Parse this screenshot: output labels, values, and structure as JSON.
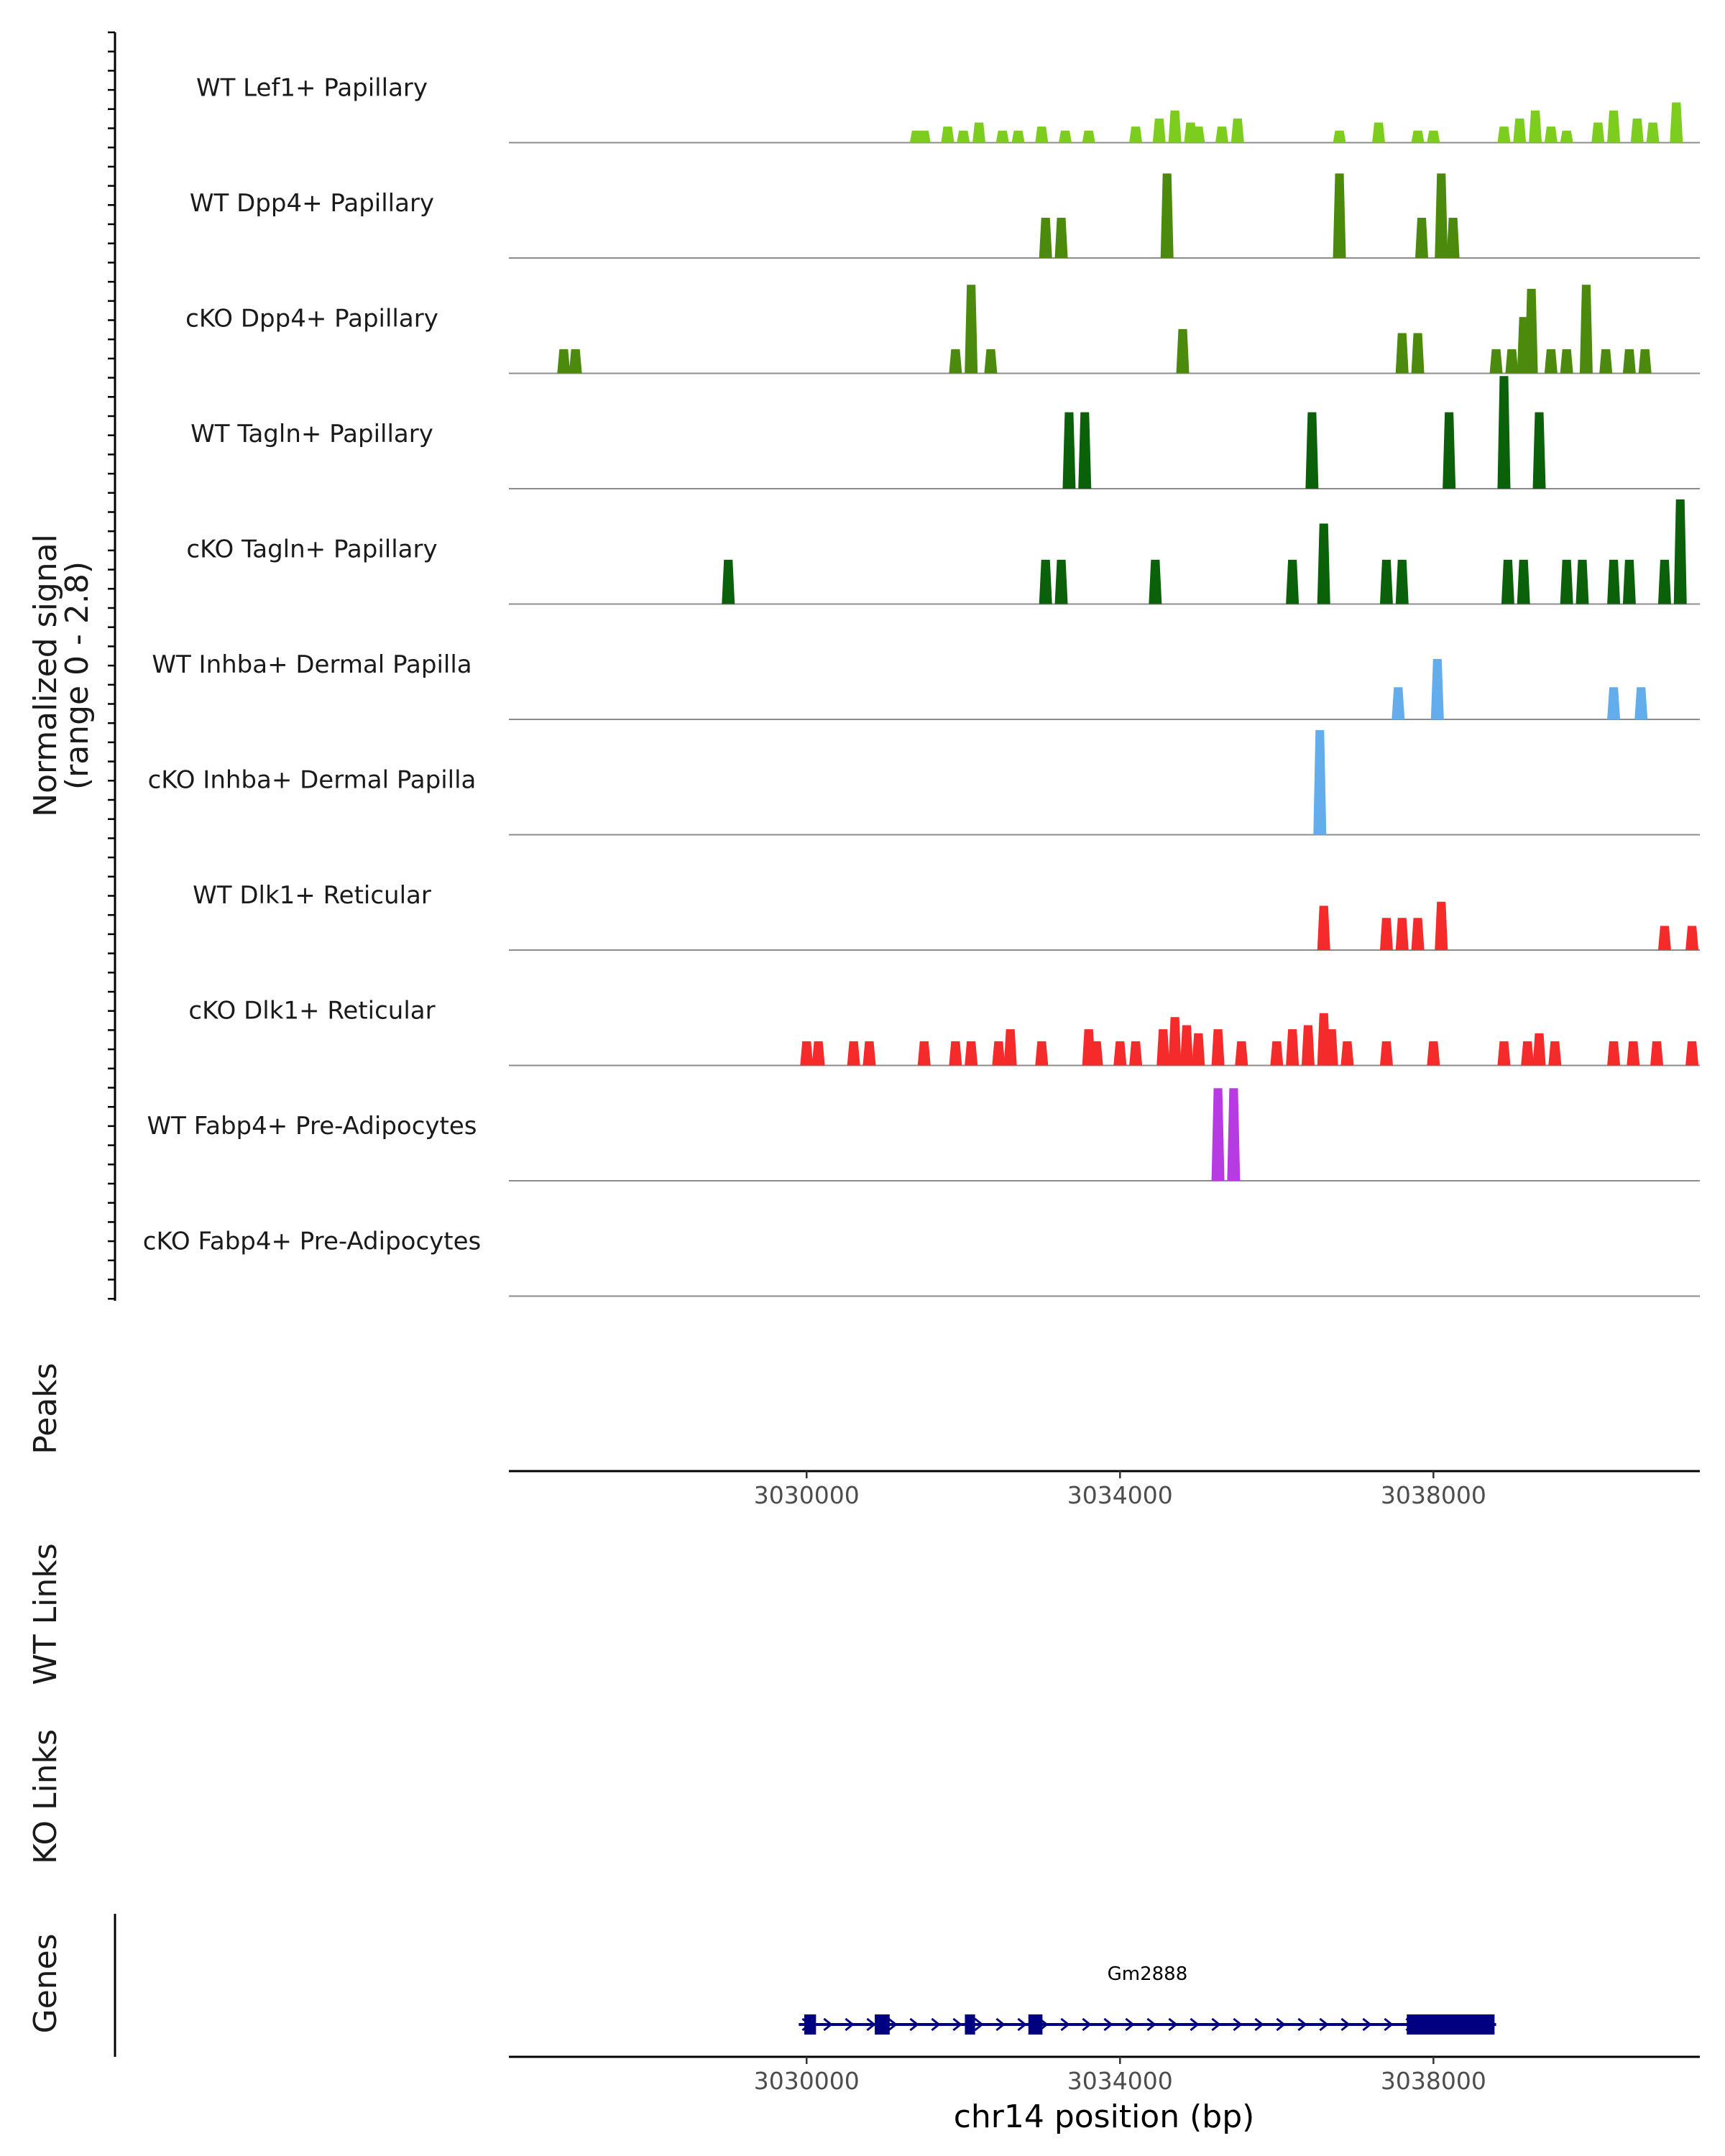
{
  "chart_data": {
    "type": "area",
    "title": "",
    "chromosome": "chr14",
    "xlabel": "chr14 position (bp)",
    "ylabel_line1": "Normalized signal",
    "ylabel_line2": "(range 0 - 2.8)",
    "xlim": [
      3026200,
      3041400
    ],
    "ylim": [
      0,
      2.8
    ],
    "x_ticks": [
      3030000,
      3034000,
      3038000
    ],
    "x_tick_labels": [
      "3030000",
      "3034000",
      "3038000"
    ],
    "panel_labels": {
      "peaks": "Peaks",
      "wt_links": "WT Links",
      "ko_links": "KO Links",
      "genes": "Genes"
    },
    "series": [
      {
        "name": "WT Lef1+ Papillary",
        "color": "#7CCD1E",
        "peaks": [
          [
            3031400,
            0.3
          ],
          [
            3031500,
            0.3
          ],
          [
            3031800,
            0.4
          ],
          [
            3032000,
            0.3
          ],
          [
            3032200,
            0.5
          ],
          [
            3032500,
            0.3
          ],
          [
            3032700,
            0.3
          ],
          [
            3033000,
            0.4
          ],
          [
            3033300,
            0.3
          ],
          [
            3033600,
            0.3
          ],
          [
            3034200,
            0.4
          ],
          [
            3034500,
            0.6
          ],
          [
            3034700,
            0.8
          ],
          [
            3034900,
            0.5
          ],
          [
            3035000,
            0.4
          ],
          [
            3035300,
            0.4
          ],
          [
            3035500,
            0.6
          ],
          [
            3036800,
            0.3
          ],
          [
            3037300,
            0.5
          ],
          [
            3037800,
            0.3
          ],
          [
            3038000,
            0.3
          ],
          [
            3038900,
            0.4
          ],
          [
            3039100,
            0.6
          ],
          [
            3039300,
            0.8
          ],
          [
            3039500,
            0.4
          ],
          [
            3039700,
            0.3
          ],
          [
            3040100,
            0.5
          ],
          [
            3040300,
            0.8
          ],
          [
            3040600,
            0.6
          ],
          [
            3040800,
            0.5
          ],
          [
            3041100,
            1.0
          ]
        ]
      },
      {
        "name": "WT Dpp4+ Papillary",
        "color": "#4C8A0E",
        "peaks": [
          [
            3033050,
            1.0
          ],
          [
            3033250,
            1.0
          ],
          [
            3034600,
            2.1
          ],
          [
            3036800,
            2.1
          ],
          [
            3037850,
            1.0
          ],
          [
            3038100,
            2.1
          ],
          [
            3038250,
            1.0
          ]
        ]
      },
      {
        "name": "cKO Dpp4+ Papillary",
        "color": "#4C8A0E",
        "peaks": [
          [
            3026900,
            0.6
          ],
          [
            3027050,
            0.6
          ],
          [
            3031900,
            0.6
          ],
          [
            3032100,
            2.2
          ],
          [
            3032350,
            0.6
          ],
          [
            3034800,
            1.1
          ],
          [
            3037600,
            1.0
          ],
          [
            3037800,
            1.0
          ],
          [
            3038800,
            0.6
          ],
          [
            3039000,
            0.6
          ],
          [
            3039150,
            1.4
          ],
          [
            3039250,
            2.1
          ],
          [
            3039500,
            0.6
          ],
          [
            3039700,
            0.6
          ],
          [
            3039950,
            2.2
          ],
          [
            3040200,
            0.6
          ],
          [
            3040500,
            0.6
          ],
          [
            3040700,
            0.6
          ]
        ]
      },
      {
        "name": "WT Tagln+ Papillary",
        "color": "#0B6109",
        "peaks": [
          [
            3033350,
            1.9
          ],
          [
            3033550,
            1.9
          ],
          [
            3036450,
            1.9
          ],
          [
            3038200,
            1.9
          ],
          [
            3038900,
            2.8
          ],
          [
            3039350,
            1.9
          ]
        ]
      },
      {
        "name": "cKO Tagln+ Papillary",
        "color": "#0B6109",
        "peaks": [
          [
            3029000,
            1.1
          ],
          [
            3033050,
            1.1
          ],
          [
            3033250,
            1.1
          ],
          [
            3034450,
            1.1
          ],
          [
            3036200,
            1.1
          ],
          [
            3036600,
            2.0
          ],
          [
            3037400,
            1.1
          ],
          [
            3037600,
            1.1
          ],
          [
            3038950,
            1.1
          ],
          [
            3039150,
            1.1
          ],
          [
            3039700,
            1.1
          ],
          [
            3039900,
            1.1
          ],
          [
            3040300,
            1.1
          ],
          [
            3040500,
            1.1
          ],
          [
            3040950,
            1.1
          ],
          [
            3041150,
            2.6
          ]
        ]
      },
      {
        "name": "WT Inhba+ Dermal Papilla",
        "color": "#64ADEC",
        "peaks": [
          [
            3037550,
            0.8
          ],
          [
            3038050,
            1.5
          ],
          [
            3040300,
            0.8
          ],
          [
            3040650,
            0.8
          ]
        ]
      },
      {
        "name": "cKO Inhba+ Dermal Papilla",
        "color": "#64ADEC",
        "peaks": [
          [
            3036550,
            2.6
          ]
        ]
      },
      {
        "name": "WT Dlk1+ Reticular",
        "color": "#F52A2A",
        "peaks": [
          [
            3036600,
            1.1
          ],
          [
            3037400,
            0.8
          ],
          [
            3037600,
            0.8
          ],
          [
            3037800,
            0.8
          ],
          [
            3038100,
            1.2
          ],
          [
            3040950,
            0.6
          ],
          [
            3041300,
            0.6
          ]
        ]
      },
      {
        "name": "cKO Dlk1+ Reticular",
        "color": "#F52A2A",
        "peaks": [
          [
            3030000,
            0.6
          ],
          [
            3030150,
            0.6
          ],
          [
            3030600,
            0.6
          ],
          [
            3030800,
            0.6
          ],
          [
            3031500,
            0.6
          ],
          [
            3031900,
            0.6
          ],
          [
            3032100,
            0.6
          ],
          [
            3032450,
            0.6
          ],
          [
            3032600,
            0.9
          ],
          [
            3033000,
            0.6
          ],
          [
            3033600,
            0.9
          ],
          [
            3033700,
            0.6
          ],
          [
            3034000,
            0.6
          ],
          [
            3034200,
            0.6
          ],
          [
            3034550,
            0.9
          ],
          [
            3034700,
            1.2
          ],
          [
            3034850,
            1.0
          ],
          [
            3035000,
            0.8
          ],
          [
            3035250,
            0.9
          ],
          [
            3035550,
            0.6
          ],
          [
            3036000,
            0.6
          ],
          [
            3036200,
            0.9
          ],
          [
            3036400,
            1.0
          ],
          [
            3036600,
            1.3
          ],
          [
            3036700,
            0.9
          ],
          [
            3036900,
            0.6
          ],
          [
            3037400,
            0.6
          ],
          [
            3038000,
            0.6
          ],
          [
            3038900,
            0.6
          ],
          [
            3039200,
            0.6
          ],
          [
            3039350,
            0.8
          ],
          [
            3039550,
            0.6
          ],
          [
            3040300,
            0.6
          ],
          [
            3040550,
            0.6
          ],
          [
            3040850,
            0.6
          ],
          [
            3041300,
            0.6
          ]
        ]
      },
      {
        "name": "WT Fabp4+ Pre-Adipocytes",
        "color": "#B63BE3",
        "peaks": [
          [
            3035250,
            2.3
          ],
          [
            3035450,
            2.3
          ]
        ]
      },
      {
        "name": "cKO Fabp4+ Pre-Adipocytes",
        "color": "#B63BE3",
        "peaks": []
      }
    ],
    "genes": [
      {
        "name": "Gm2888",
        "strand": "+",
        "start": 3029900,
        "end": 3038800,
        "exons": [
          [
            3029970,
            3030120
          ],
          [
            3030870,
            3031060
          ],
          [
            3032020,
            3032150
          ],
          [
            3032830,
            3033010
          ],
          [
            3037660,
            3038780
          ]
        ]
      }
    ]
  }
}
